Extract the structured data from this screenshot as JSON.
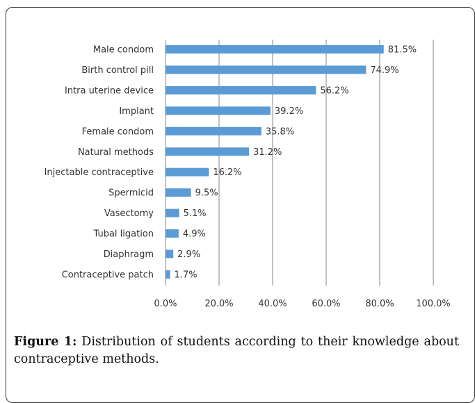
{
  "caption": {
    "figure_label": "Figure 1:",
    "text": " Distribution of students according to their knowledge about contraceptive methods."
  },
  "colors": {
    "bar": "#5b9bd5",
    "grid": "#868686",
    "text": "#333333"
  },
  "chart_data": {
    "type": "bar",
    "orientation": "horizontal",
    "categories": [
      "Male condom",
      "Birth control pill",
      "Intra uterine device",
      "Implant",
      "Female condom",
      "Natural methods",
      "Injectable contraceptive",
      "Spermicid",
      "Vasectomy",
      "Tubal ligation",
      "Diaphragm",
      "Contraceptive patch"
    ],
    "values": [
      81.5,
      74.9,
      56.2,
      39.2,
      35.8,
      31.2,
      16.2,
      9.5,
      5.1,
      4.9,
      2.9,
      1.7
    ],
    "value_labels": [
      "81.5%",
      "74.9%",
      "56.2%",
      "39.2%",
      "35.8%",
      "31.2%",
      "16.2%",
      "9.5%",
      "5.1%",
      "4.9%",
      "2.9%",
      "1.7%"
    ],
    "xlim": [
      0,
      100
    ],
    "xticks": [
      0,
      20,
      40,
      60,
      80,
      100
    ],
    "xtick_labels": [
      "0.0%",
      "20.0%",
      "40.0%",
      "60.0%",
      "80.0%",
      "100.0%"
    ],
    "grid": true,
    "legend": "none"
  }
}
